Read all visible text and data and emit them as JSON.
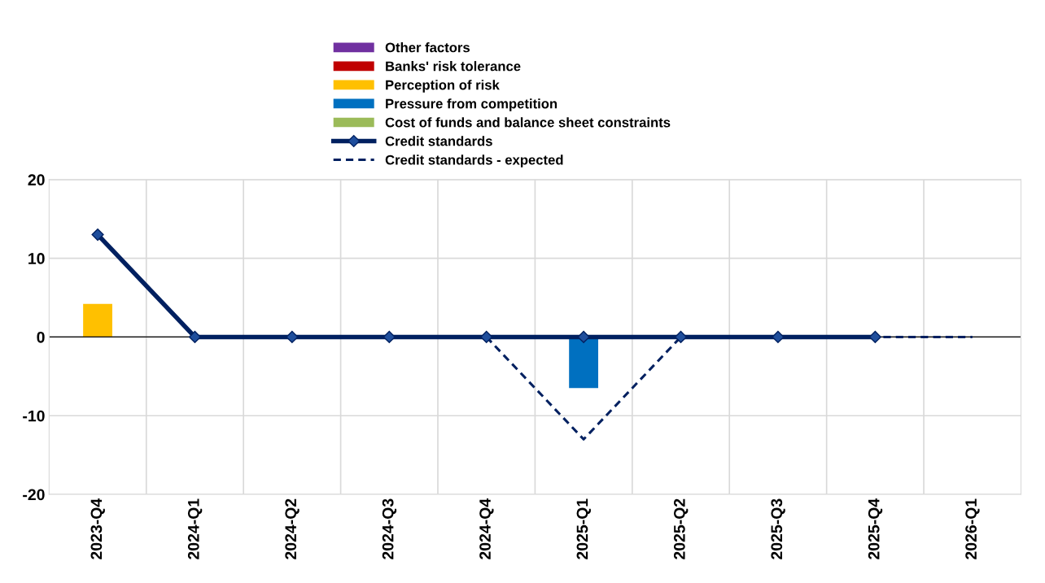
{
  "chart_data": {
    "type": "bar",
    "categories": [
      "2023-Q4",
      "2024-Q1",
      "2024-Q2",
      "2024-Q3",
      "2024-Q4",
      "2025-Q1",
      "2025-Q2",
      "2025-Q3",
      "2025-Q4",
      "2026-Q1"
    ],
    "series": [
      {
        "name": "Cost of funds and balance sheet constraints",
        "color": "#9bbb59",
        "values": [
          0,
          0,
          0,
          0,
          0,
          0,
          null,
          null,
          null,
          null
        ]
      },
      {
        "name": "Pressure from competition",
        "color": "#0070c0",
        "values": [
          0,
          0,
          0,
          0,
          0,
          -6.5,
          null,
          null,
          null,
          null
        ]
      },
      {
        "name": "Perception of risk",
        "color": "#ffc000",
        "values": [
          4.2,
          0,
          0,
          0,
          0,
          0,
          null,
          null,
          null,
          null
        ]
      },
      {
        "name": "Banks' risk tolerance",
        "color": "#c00000",
        "values": [
          0,
          0,
          0,
          0,
          0,
          0,
          null,
          null,
          null,
          null
        ]
      },
      {
        "name": "Other factors",
        "color": "#7030a0",
        "values": [
          0,
          0,
          0,
          0,
          0,
          0,
          null,
          null,
          null,
          null
        ]
      },
      {
        "name": "Credit standards",
        "type": "line",
        "color": "#002060",
        "marker": "diamond",
        "line_style": "solid",
        "values": [
          13,
          0,
          0,
          0,
          0,
          0,
          0,
          0,
          0,
          null
        ]
      },
      {
        "name": "Credit standards - expected",
        "type": "line",
        "color": "#002060",
        "marker": "none",
        "line_style": "dashed",
        "values": [
          null,
          null,
          null,
          null,
          0,
          -13,
          0,
          0,
          0,
          0
        ]
      }
    ],
    "ylim": [
      -20,
      20
    ],
    "yticks": [
      -20,
      -10,
      0,
      10,
      20
    ],
    "grid": true,
    "legend": "top"
  }
}
